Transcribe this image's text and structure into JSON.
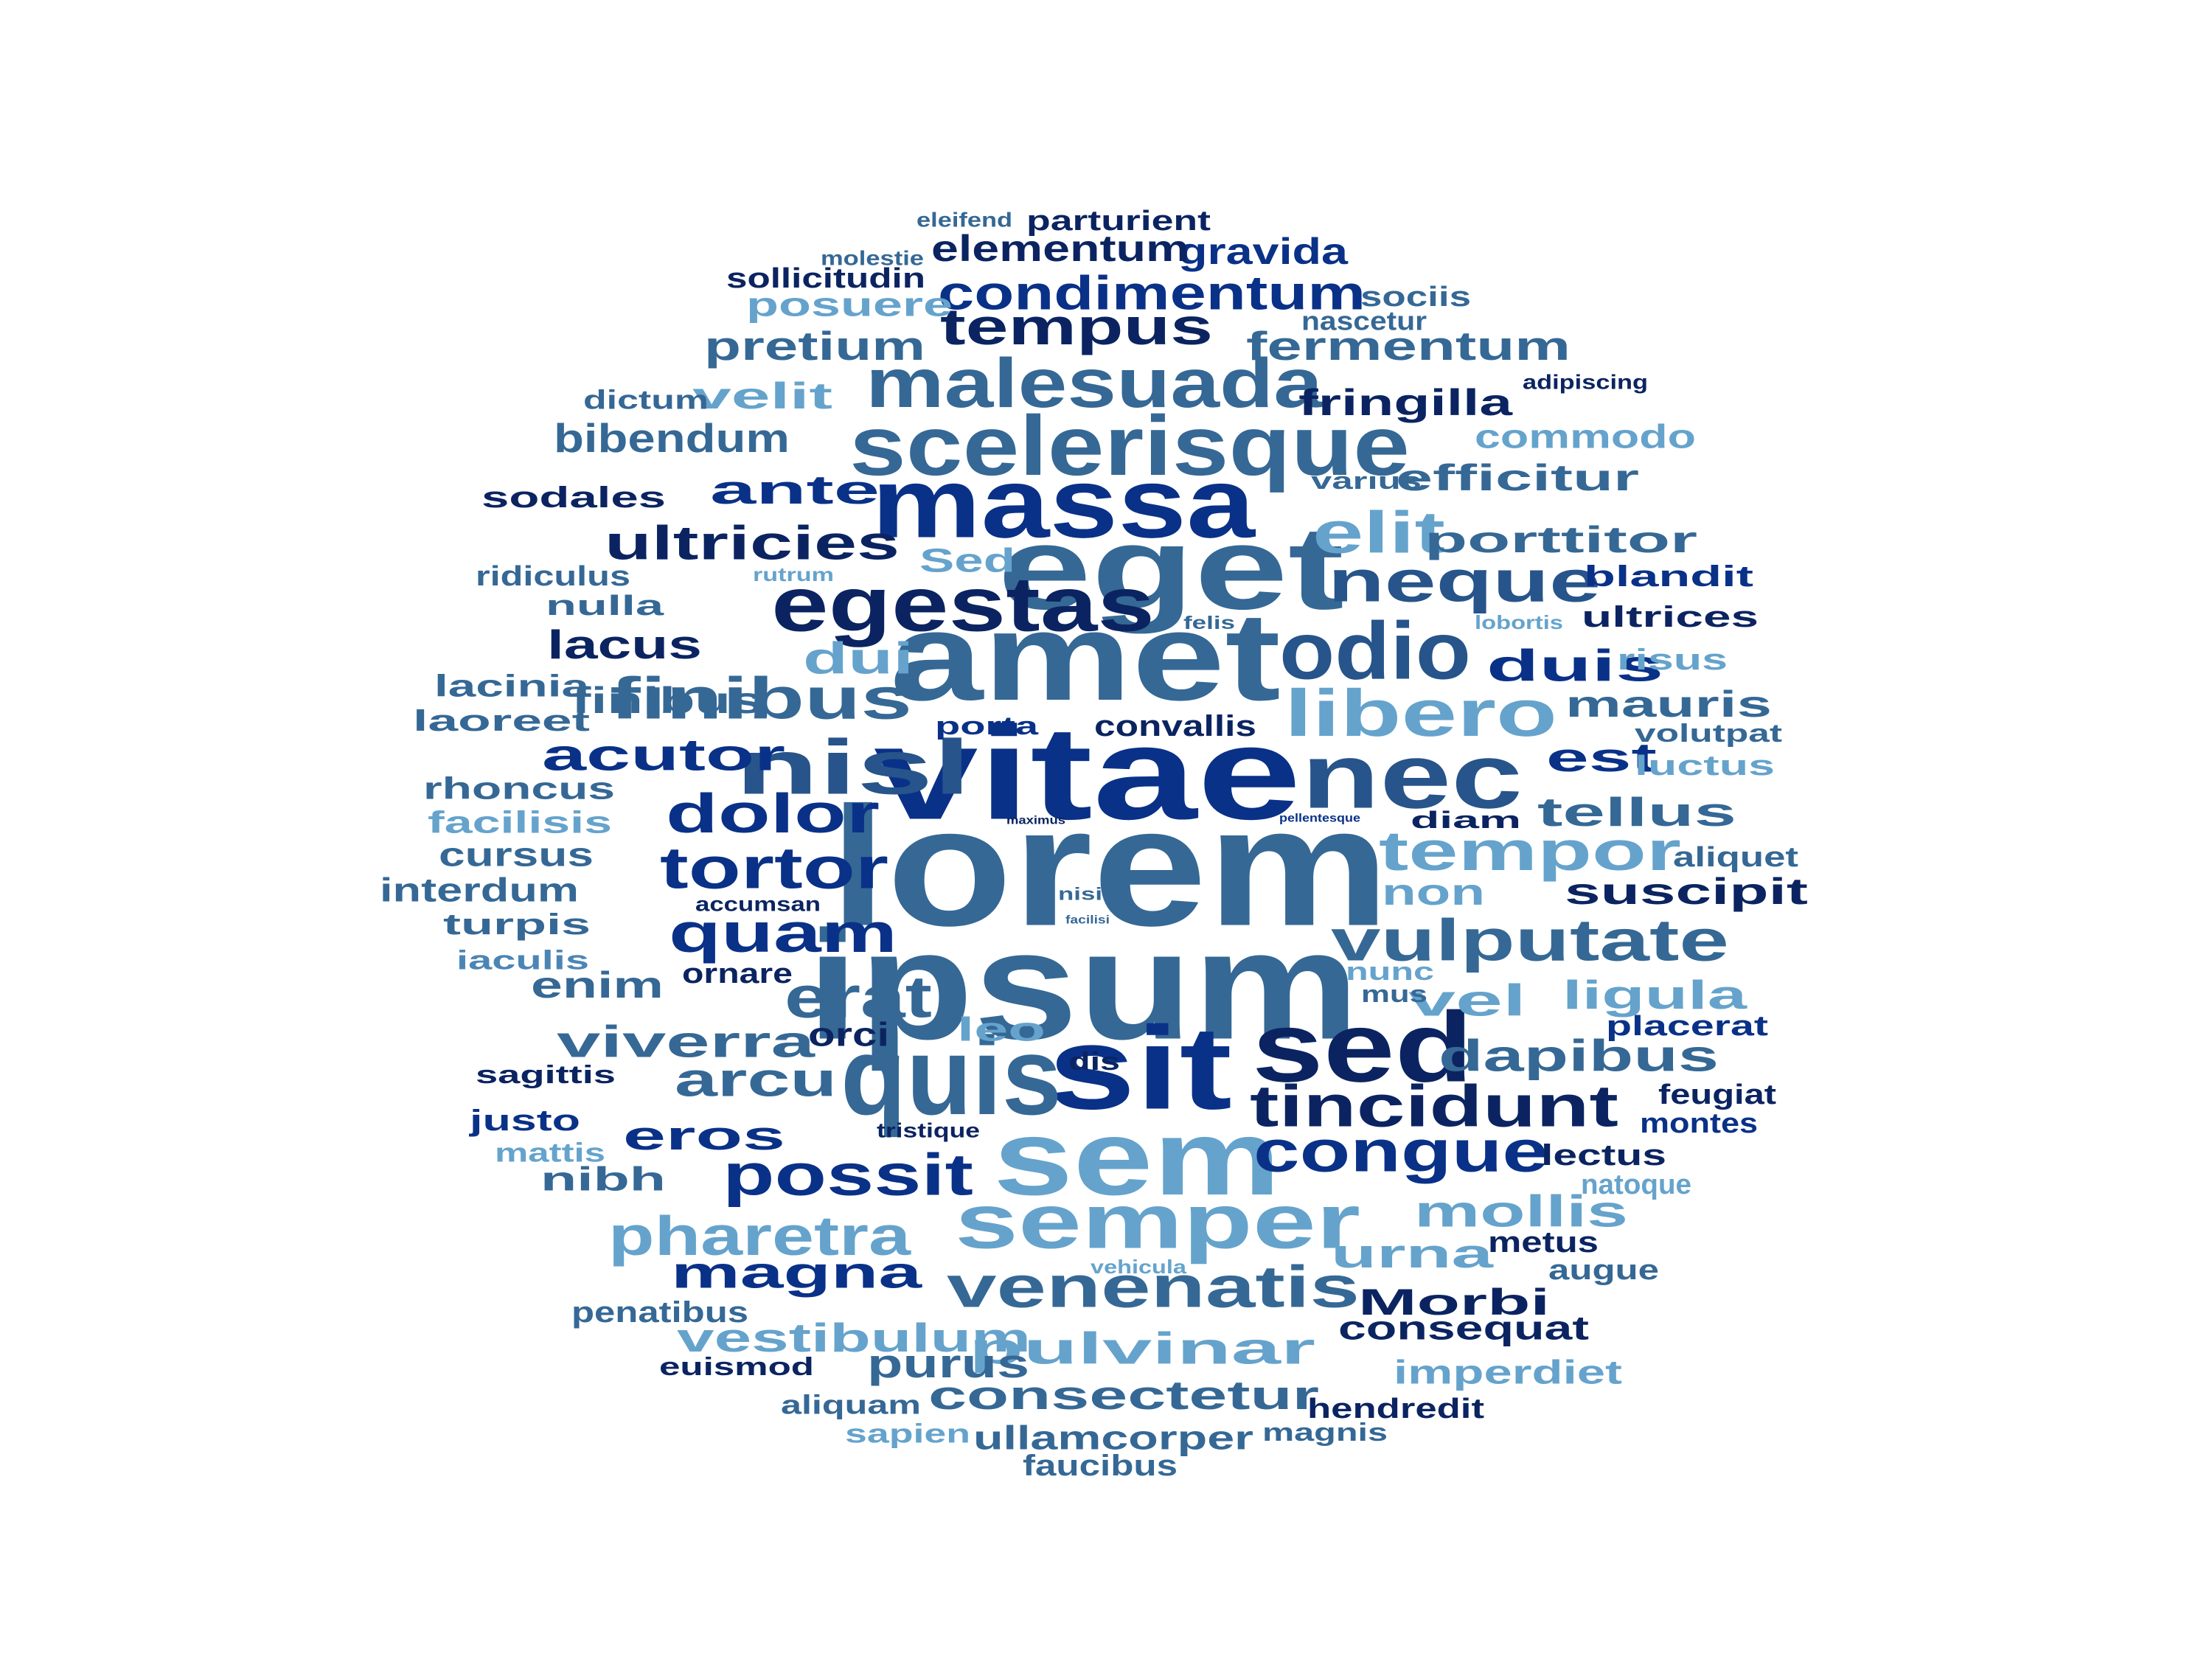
{
  "palette": {
    "c1": "#0b2461",
    "c2": "#0a3188",
    "c3": "#27548a",
    "c4": "#356895",
    "c5": "#4c85b5",
    "c6": "#65a3cc"
  },
  "words": [
    {
      "text": "lorem",
      "color": "c4"
    },
    {
      "text": "ipsum",
      "color": "c4"
    },
    {
      "text": "vitae",
      "color": "c2"
    },
    {
      "text": "amet",
      "color": "c4"
    },
    {
      "text": "eget",
      "color": "c4"
    },
    {
      "text": "sit",
      "color": "c2"
    },
    {
      "text": "quis",
      "color": "c4"
    },
    {
      "text": "sem",
      "color": "c6"
    },
    {
      "text": "sed",
      "color": "c1"
    },
    {
      "text": "massa",
      "color": "c2"
    },
    {
      "text": "nec",
      "color": "c3"
    },
    {
      "text": "scelerisque",
      "color": "c4"
    },
    {
      "text": "semper",
      "color": "c6"
    },
    {
      "text": "egestas",
      "color": "c1"
    },
    {
      "text": "malesuada",
      "color": "c4"
    },
    {
      "text": "odio",
      "color": "c3"
    },
    {
      "text": "libero",
      "color": "c6"
    },
    {
      "text": "nisl",
      "color": "c3"
    },
    {
      "text": "vulputate",
      "color": "c4"
    },
    {
      "text": "tincidunt",
      "color": "c1"
    },
    {
      "text": "finibus",
      "color": "c4"
    },
    {
      "text": "neque",
      "color": "c3"
    },
    {
      "text": "possit",
      "color": "c2"
    },
    {
      "text": "congue",
      "color": "c2"
    },
    {
      "text": "tempor",
      "color": "c6"
    },
    {
      "text": "venenatis",
      "color": "c4"
    },
    {
      "text": "pharetra",
      "color": "c6"
    },
    {
      "text": "tortor",
      "color": "c2"
    },
    {
      "text": "quam",
      "color": "c2"
    },
    {
      "text": "erat",
      "color": "c4"
    },
    {
      "text": "dolor",
      "color": "c2"
    },
    {
      "text": "elit",
      "color": "c6"
    },
    {
      "text": "tempus",
      "color": "c1"
    },
    {
      "text": "condimentum",
      "color": "c2"
    },
    {
      "text": "ultricies",
      "color": "c1"
    },
    {
      "text": "acutor",
      "color": "c2"
    },
    {
      "text": "arcu",
      "color": "c4"
    },
    {
      "text": "viverra",
      "color": "c4"
    },
    {
      "text": "mollis",
      "color": "c6"
    },
    {
      "text": "dapibus",
      "color": "c4"
    },
    {
      "text": "pulvinar",
      "color": "c6"
    },
    {
      "text": "consectetur",
      "color": "c4"
    },
    {
      "text": "magna",
      "color": "c2"
    },
    {
      "text": "vestibulum",
      "color": "c6"
    },
    {
      "text": "tellus",
      "color": "c4"
    },
    {
      "text": "ligula",
      "color": "c6"
    },
    {
      "text": "vel",
      "color": "c6"
    },
    {
      "text": "duis",
      "color": "c2"
    },
    {
      "text": "dui",
      "color": "c6"
    },
    {
      "text": "pretium",
      "color": "c4"
    },
    {
      "text": "fermentum",
      "color": "c4"
    },
    {
      "text": "eros",
      "color": "c2"
    },
    {
      "text": "ante",
      "color": "c2"
    },
    {
      "text": "bibendum",
      "color": "c4"
    },
    {
      "text": "urna",
      "color": "c6"
    },
    {
      "text": "porttitor",
      "color": "c4"
    },
    {
      "text": "efficitur",
      "color": "c4"
    },
    {
      "text": "lacus",
      "color": "c1"
    },
    {
      "text": "purus",
      "color": "c4"
    },
    {
      "text": "mauris",
      "color": "c4"
    },
    {
      "text": "est",
      "color": "c2"
    },
    {
      "text": "suscipit",
      "color": "c1"
    },
    {
      "text": "fringilla",
      "color": "c1"
    },
    {
      "text": "gravida",
      "color": "c2"
    },
    {
      "text": "elementum",
      "color": "c1"
    },
    {
      "text": "velit",
      "color": "c6"
    },
    {
      "text": "Morbi",
      "color": "c1"
    },
    {
      "text": "Sed",
      "color": "c6"
    },
    {
      "text": "enim",
      "color": "c4"
    },
    {
      "text": "non",
      "color": "c6"
    },
    {
      "text": "leo",
      "color": "c6"
    },
    {
      "text": "commodo",
      "color": "c6"
    },
    {
      "text": "nibh",
      "color": "c4"
    },
    {
      "text": "orci",
      "color": "c1"
    },
    {
      "text": "imperdiet",
      "color": "c6"
    },
    {
      "text": "ullamcorper",
      "color": "c4"
    },
    {
      "text": "posuere",
      "color": "c6"
    },
    {
      "text": "consequat",
      "color": "c1"
    },
    {
      "text": "sodales",
      "color": "c1"
    },
    {
      "text": "parturient",
      "color": "c1"
    },
    {
      "text": "metus",
      "color": "c1"
    },
    {
      "text": "finibus",
      "color": "c4"
    },
    {
      "text": "ultrices",
      "color": "c1"
    },
    {
      "text": "blandit",
      "color": "c2"
    },
    {
      "text": "lectus",
      "color": "c1"
    },
    {
      "text": "interdum",
      "color": "c4"
    },
    {
      "text": "cursus",
      "color": "c4"
    },
    {
      "text": "rhoncus",
      "color": "c4"
    },
    {
      "text": "lacinia",
      "color": "c4"
    },
    {
      "text": "laoreet",
      "color": "c4"
    },
    {
      "text": "facilisis",
      "color": "c6"
    },
    {
      "text": "turpis",
      "color": "c4"
    },
    {
      "text": "justo",
      "color": "c2"
    },
    {
      "text": "risus",
      "color": "c6"
    },
    {
      "text": "luctus",
      "color": "c6"
    },
    {
      "text": "placerat",
      "color": "c2"
    },
    {
      "text": "aliquet",
      "color": "c4"
    },
    {
      "text": "feugiat",
      "color": "c1"
    },
    {
      "text": "montes",
      "color": "c2"
    },
    {
      "text": "faucibus",
      "color": "c4"
    },
    {
      "text": "hendredit",
      "color": "c1"
    },
    {
      "text": "euismod",
      "color": "c1"
    },
    {
      "text": "penatibus",
      "color": "c4"
    },
    {
      "text": "sollicitudin",
      "color": "c1"
    },
    {
      "text": "dictum",
      "color": "c4"
    },
    {
      "text": "ridiculus",
      "color": "c4"
    },
    {
      "text": "nulla",
      "color": "c4"
    },
    {
      "text": "sagittis",
      "color": "c1"
    },
    {
      "text": "iaculis",
      "color": "c5"
    },
    {
      "text": "ornare",
      "color": "c1"
    },
    {
      "text": "sociis",
      "color": "c4"
    },
    {
      "text": "nascetur",
      "color": "c4"
    },
    {
      "text": "convallis",
      "color": "c1"
    },
    {
      "text": "porta",
      "color": "c2"
    },
    {
      "text": "volutpat",
      "color": "c4"
    },
    {
      "text": "diam",
      "color": "c1"
    },
    {
      "text": "natoque",
      "color": "c6"
    },
    {
      "text": "augue",
      "color": "c4"
    },
    {
      "text": "mattis",
      "color": "c6"
    },
    {
      "text": "sapien",
      "color": "c6"
    },
    {
      "text": "aliquam",
      "color": "c4"
    },
    {
      "text": "magnis",
      "color": "c4"
    },
    {
      "text": "dis",
      "color": "c1"
    },
    {
      "text": "nunc",
      "color": "c6"
    },
    {
      "text": "mus",
      "color": "c4"
    },
    {
      "text": "varius",
      "color": "c4"
    },
    {
      "text": "eleifend",
      "color": "c4"
    },
    {
      "text": "molestie",
      "color": "c4"
    },
    {
      "text": "adipiscing",
      "color": "c1"
    },
    {
      "text": "accumsan",
      "color": "c1"
    },
    {
      "text": "tristique",
      "color": "c1"
    },
    {
      "text": "vehicula",
      "color": "c6"
    },
    {
      "text": "felis",
      "color": "c4"
    },
    {
      "text": "lobortis",
      "color": "c6"
    },
    {
      "text": "rutrum",
      "color": "c6"
    },
    {
      "text": "nisi",
      "color": "c4"
    },
    {
      "text": "maximus",
      "color": "c1"
    },
    {
      "text": "pellentesque",
      "color": "c2"
    },
    {
      "text": "facilisi",
      "color": "c4"
    }
  ]
}
